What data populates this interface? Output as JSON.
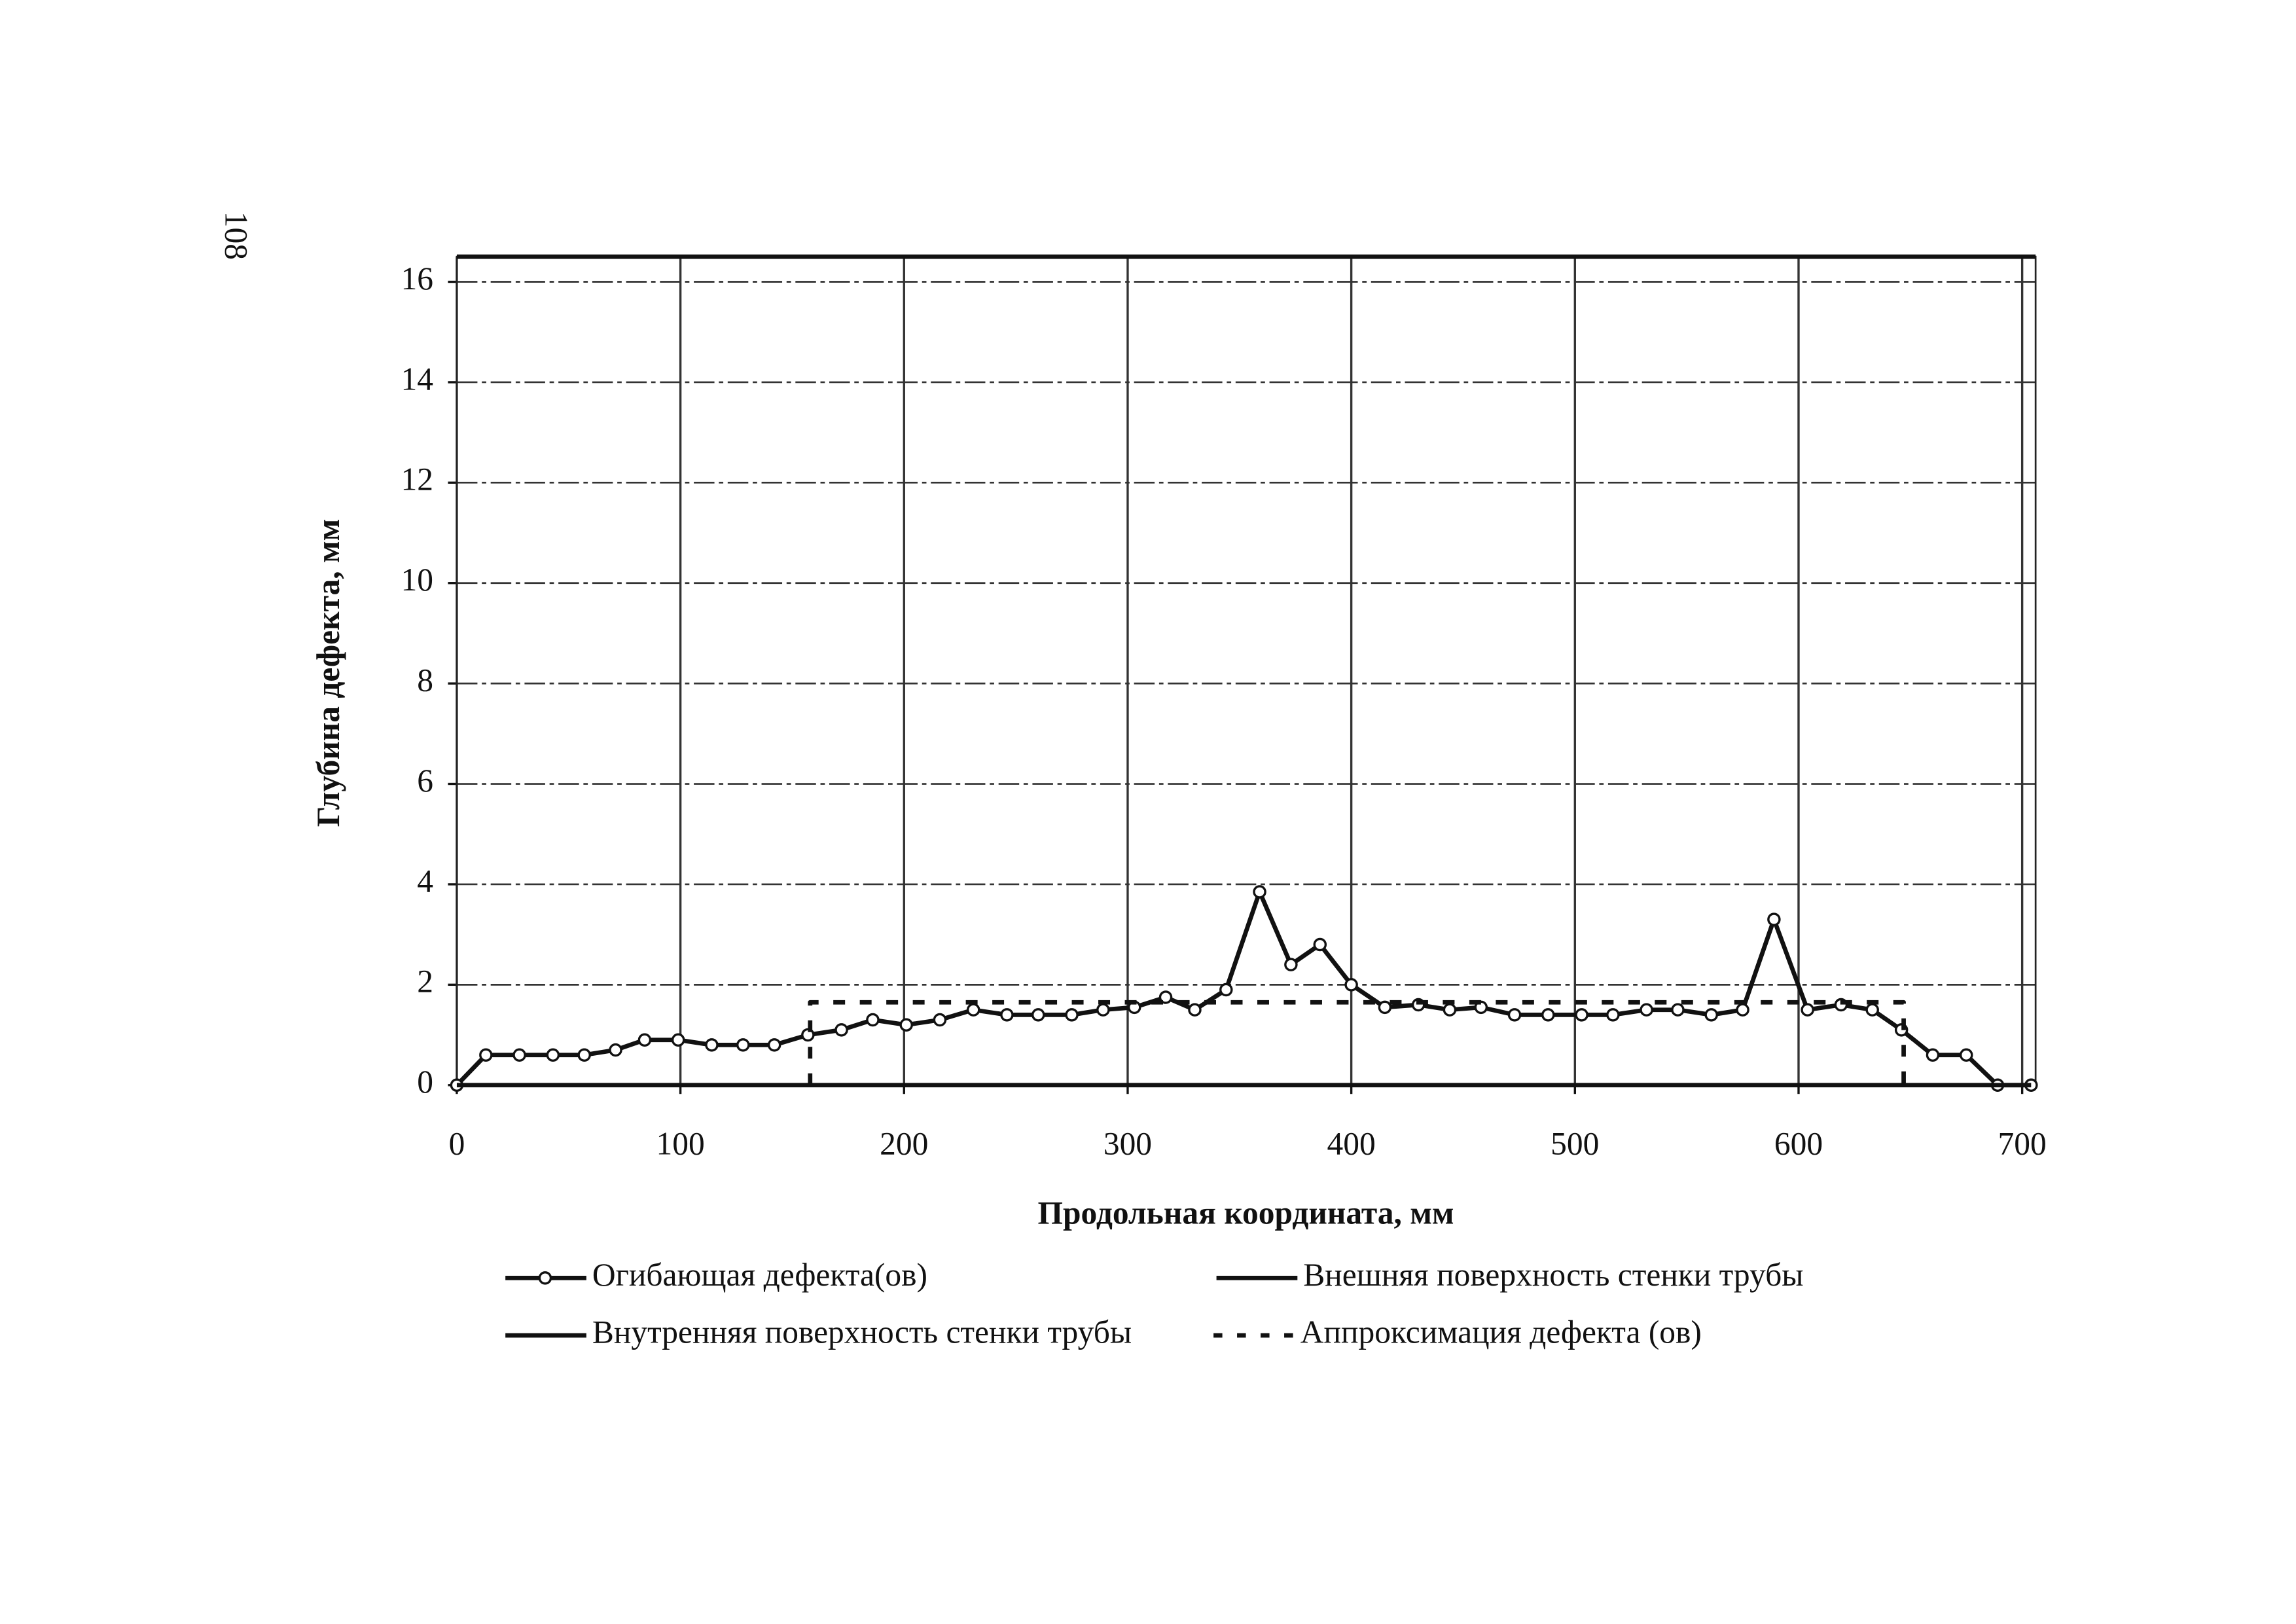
{
  "page_number": "108",
  "chart_data": {
    "type": "line",
    "x_label": "Продольная координата, мм",
    "y_label": "Глубина дефекта, мм",
    "xlim": [
      0,
      706
    ],
    "ylim": [
      0,
      16.5
    ],
    "xticks": [
      0,
      100,
      200,
      300,
      400,
      500,
      600,
      700
    ],
    "yticks": [
      0,
      2,
      4,
      6,
      8,
      10,
      12,
      14,
      16
    ],
    "grid": true,
    "series": [
      {
        "name": "Огибающая дефекта(ов)",
        "color": "#111111",
        "style": "solid",
        "markers": true,
        "x": [
          0,
          13,
          28,
          43,
          57,
          71,
          84,
          99,
          114,
          128,
          142,
          157,
          172,
          186,
          201,
          216,
          231,
          246,
          260,
          275,
          289,
          303,
          317,
          330,
          344,
          359,
          373,
          386,
          400,
          415,
          430,
          444,
          458,
          473,
          488,
          503,
          517,
          532,
          546,
          561,
          575,
          589,
          604,
          619,
          633,
          646,
          660,
          675,
          689,
          704
        ],
        "values": [
          0,
          0.6,
          0.6,
          0.6,
          0.6,
          0.7,
          0.9,
          0.9,
          0.8,
          0.8,
          0.8,
          1.0,
          1.1,
          1.3,
          1.2,
          1.3,
          1.5,
          1.4,
          1.4,
          1.4,
          1.5,
          1.55,
          1.75,
          1.5,
          1.9,
          3.85,
          2.4,
          2.8,
          2.0,
          1.55,
          1.6,
          1.5,
          1.55,
          1.4,
          1.4,
          1.4,
          1.4,
          1.5,
          1.5,
          1.4,
          1.5,
          3.3,
          1.5,
          1.6,
          1.5,
          1.1,
          0.6,
          0.6,
          0,
          0
        ]
      },
      {
        "name": "Внешняя поверхность стенки трубы",
        "color": "#111111",
        "style": "solid",
        "markers": false,
        "x": [
          0,
          704
        ],
        "values": [
          0,
          0
        ]
      },
      {
        "name": "Внутренняя поверхность стенки трубы",
        "color": "#111111",
        "style": "solid",
        "markers": false,
        "x": [
          0,
          706
        ],
        "values": [
          16.5,
          16.5
        ]
      },
      {
        "name": "Аппроксимация дефекта (ов)",
        "color": "#111111",
        "style": "dash",
        "markers": false,
        "x": [
          158,
          158,
          647,
          647
        ],
        "values": [
          0,
          1.65,
          1.65,
          0
        ]
      }
    ]
  }
}
